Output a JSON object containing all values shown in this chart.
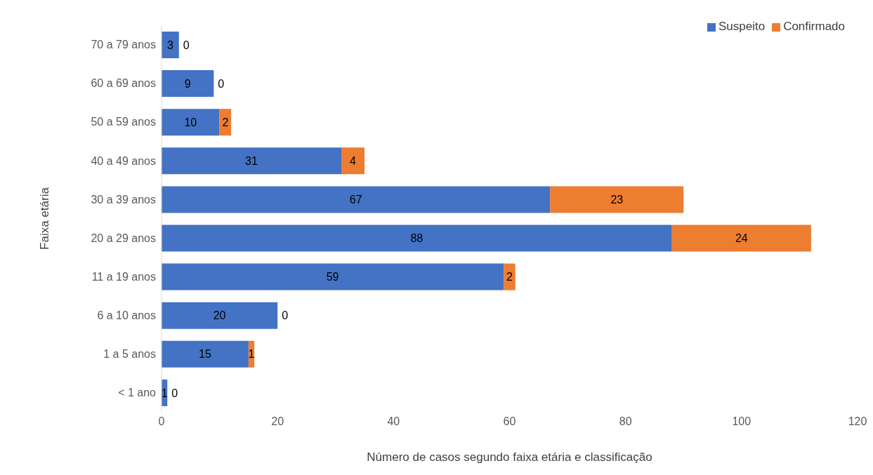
{
  "chart_data": {
    "type": "bar",
    "orientation": "horizontal",
    "stacked": true,
    "xlabel": "Número de casos segundo faixa etária e classificação",
    "ylabel": "Faixa etária",
    "categories": [
      "70 a 79 anos",
      "60 a 69 anos",
      "50 a 59 anos",
      "40 a 49 anos",
      "30 a 39 anos",
      "20 a 29 anos",
      "11 a 19 anos",
      "6 a 10 anos",
      "1 a 5 anos",
      "< 1 ano"
    ],
    "series": [
      {
        "name": "Suspeito",
        "color": "#4472c4",
        "values": [
          3,
          9,
          10,
          31,
          67,
          88,
          59,
          20,
          15,
          1
        ]
      },
      {
        "name": "Confirmado",
        "color": "#ed7d31",
        "values": [
          0,
          0,
          2,
          4,
          23,
          24,
          2,
          0,
          1,
          0
        ]
      }
    ],
    "xlim": [
      0,
      120
    ],
    "xticks": [
      0,
      20,
      40,
      60,
      80,
      100,
      120
    ],
    "legend": "top right",
    "data_labels": true
  }
}
